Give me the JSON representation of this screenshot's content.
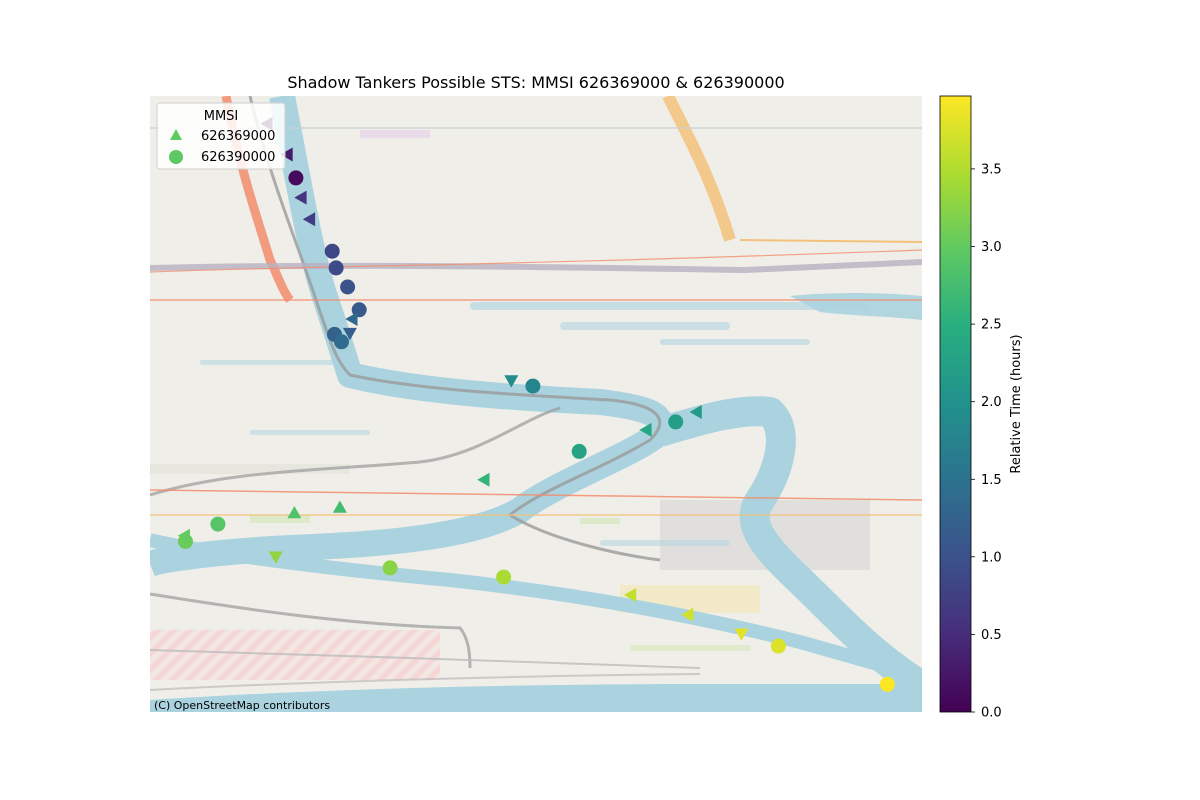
{
  "chart_data": {
    "type": "scatter",
    "title": "Shadow Tankers Possible STS: MMSI 626369000 & 626390000",
    "attribution": "(C) OpenStreetMap contributors",
    "legend": {
      "title": "MMSI",
      "position": "top-left",
      "entries": [
        {
          "label": "626369000",
          "marker": "triangle"
        },
        {
          "label": "626390000",
          "marker": "circle"
        }
      ]
    },
    "colorbar": {
      "label": "Relative Time (hours)",
      "colormap": "viridis",
      "range": [
        0.0,
        3.97
      ],
      "ticks": [
        "0.0",
        "0.5",
        "1.0",
        "1.5",
        "2.0",
        "2.5",
        "3.0",
        "3.5"
      ]
    },
    "map_extent": {
      "lon": [
        0,
        100
      ],
      "lat": [
        0,
        100
      ]
    },
    "grid": false,
    "series": [
      {
        "name": "626369000",
        "marker": "triangle",
        "points": [
          {
            "lon": 15.2,
            "lat": 95.5,
            "t": 0.05,
            "dir": "left"
          },
          {
            "lon": 17.8,
            "lat": 90.5,
            "t": 0.3,
            "dir": "left"
          },
          {
            "lon": 19.6,
            "lat": 83.5,
            "t": 0.6,
            "dir": "left"
          },
          {
            "lon": 20.7,
            "lat": 80.0,
            "t": 0.7,
            "dir": "left"
          },
          {
            "lon": 25.9,
            "lat": 61.5,
            "t": 1.2,
            "dir": "down"
          },
          {
            "lon": 26.2,
            "lat": 63.8,
            "t": 1.35,
            "dir": "left"
          },
          {
            "lon": 46.8,
            "lat": 53.8,
            "t": 1.9,
            "dir": "down"
          },
          {
            "lon": 70.8,
            "lat": 48.7,
            "t": 2.15,
            "dir": "left"
          },
          {
            "lon": 64.3,
            "lat": 45.8,
            "t": 2.35,
            "dir": "left"
          },
          {
            "lon": 43.3,
            "lat": 37.7,
            "t": 2.6,
            "dir": "left"
          },
          {
            "lon": 24.6,
            "lat": 33.2,
            "t": 2.75,
            "dir": "up"
          },
          {
            "lon": 18.7,
            "lat": 32.3,
            "t": 2.85,
            "dir": "up"
          },
          {
            "lon": 4.5,
            "lat": 28.6,
            "t": 3.0,
            "dir": "left"
          },
          {
            "lon": 16.3,
            "lat": 25.2,
            "t": 3.3,
            "dir": "down"
          },
          {
            "lon": 62.3,
            "lat": 19.0,
            "t": 3.6,
            "dir": "left"
          },
          {
            "lon": 69.7,
            "lat": 15.8,
            "t": 3.7,
            "dir": "left"
          },
          {
            "lon": 76.6,
            "lat": 12.7,
            "t": 3.8,
            "dir": "down"
          }
        ]
      },
      {
        "name": "626390000",
        "marker": "circle",
        "points": [
          {
            "lon": 18.9,
            "lat": 86.7,
            "t": 0.1
          },
          {
            "lon": 23.6,
            "lat": 74.8,
            "t": 0.85
          },
          {
            "lon": 24.1,
            "lat": 72.1,
            "t": 0.9
          },
          {
            "lon": 25.6,
            "lat": 69.0,
            "t": 1.0
          },
          {
            "lon": 27.1,
            "lat": 65.3,
            "t": 1.1
          },
          {
            "lon": 23.9,
            "lat": 61.3,
            "t": 1.25
          },
          {
            "lon": 24.8,
            "lat": 60.1,
            "t": 1.4
          },
          {
            "lon": 49.6,
            "lat": 52.9,
            "t": 1.8
          },
          {
            "lon": 68.1,
            "lat": 47.1,
            "t": 2.2
          },
          {
            "lon": 55.6,
            "lat": 42.3,
            "t": 2.3
          },
          {
            "lon": 8.8,
            "lat": 30.5,
            "t": 2.9
          },
          {
            "lon": 4.6,
            "lat": 27.7,
            "t": 3.05
          },
          {
            "lon": 31.1,
            "lat": 23.4,
            "t": 3.25
          },
          {
            "lon": 45.8,
            "lat": 21.9,
            "t": 3.45
          },
          {
            "lon": 81.4,
            "lat": 10.7,
            "t": 3.75
          },
          {
            "lon": 95.5,
            "lat": 4.5,
            "t": 3.97
          }
        ]
      }
    ]
  }
}
